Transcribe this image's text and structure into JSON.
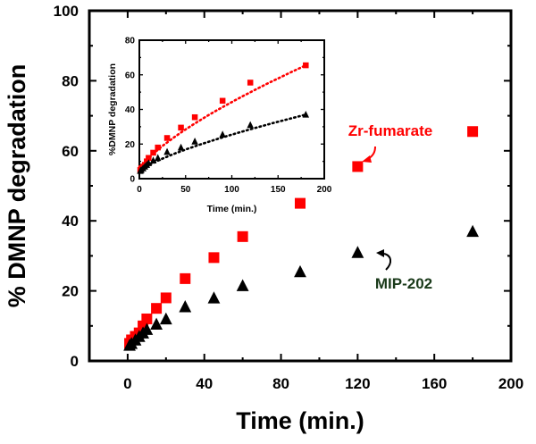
{
  "chart_data": [
    {
      "type": "scatter",
      "title": "",
      "xlabel": "Time (min.)",
      "ylabel": "% DMNP degradation",
      "xlim": [
        -20,
        200
      ],
      "ylim": [
        0,
        100
      ],
      "xticks": [
        0,
        40,
        80,
        120,
        160,
        200
      ],
      "yticks": [
        0,
        20,
        40,
        60,
        80,
        100
      ],
      "grid": false,
      "series": [
        {
          "name": "Zr-fumarate",
          "color": "#ff0000",
          "marker": "square",
          "x": [
            1,
            2,
            4,
            6,
            8,
            10,
            15,
            20,
            30,
            45,
            60,
            90,
            120,
            180
          ],
          "y": [
            5,
            6,
            7,
            8,
            10,
            12,
            15,
            18,
            23.5,
            29.5,
            35.5,
            45,
            55.5,
            65.5
          ]
        },
        {
          "name": "MIP-202",
          "color": "#000000",
          "marker": "triangle",
          "x": [
            1,
            2,
            4,
            6,
            8,
            10,
            15,
            20,
            30,
            45,
            60,
            90,
            120,
            180
          ],
          "y": [
            4.5,
            5,
            6,
            7,
            8,
            9,
            10.5,
            12,
            15.5,
            18,
            21.5,
            25.5,
            31,
            37
          ]
        }
      ],
      "annotations": [
        {
          "text": "Zr-fumarate",
          "color": "#ff0000"
        },
        {
          "text": "MIP-202",
          "color": "#1a3a1a"
        }
      ]
    },
    {
      "type": "scatter",
      "title": "",
      "xlabel": "Time (min.)",
      "ylabel": "%DMNP degradation",
      "xlim": [
        0,
        200
      ],
      "ylim": [
        0,
        80
      ],
      "xticks": [
        0,
        50,
        100,
        150,
        200
      ],
      "yticks": [
        0,
        20,
        40,
        60,
        80
      ],
      "grid": false,
      "series": [
        {
          "name": "Zr-fumarate",
          "color": "#ff0000",
          "marker": "square",
          "fit": "dotted",
          "x": [
            1,
            2,
            4,
            6,
            8,
            10,
            15,
            20,
            30,
            45,
            60,
            90,
            120,
            180
          ],
          "y": [
            5,
            6,
            7,
            8,
            10,
            12,
            15,
            18,
            23.5,
            29.5,
            35.5,
            45,
            55.5,
            65.5
          ]
        },
        {
          "name": "MIP-202",
          "color": "#000000",
          "marker": "triangle",
          "fit": "dotted",
          "x": [
            1,
            2,
            4,
            6,
            8,
            10,
            15,
            20,
            30,
            45,
            60,
            90,
            120,
            180
          ],
          "y": [
            4.5,
            5,
            6,
            7,
            8,
            9,
            10.5,
            12,
            15.5,
            18,
            21.5,
            25.5,
            31,
            37
          ]
        }
      ]
    }
  ]
}
